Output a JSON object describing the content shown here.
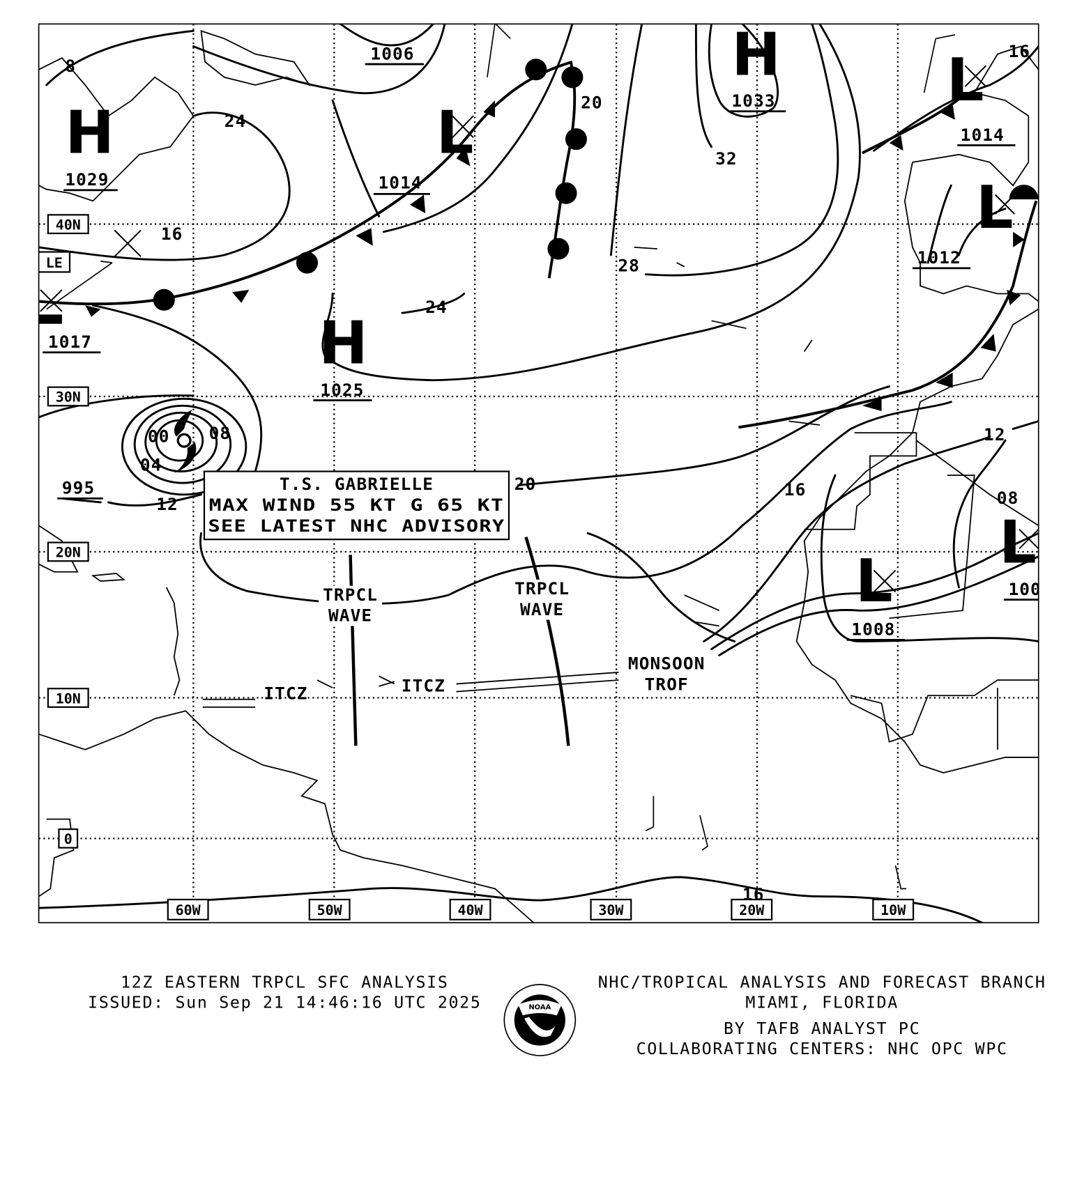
{
  "map": {
    "latitude_labels": [
      "40N",
      "30N",
      "20N",
      "10N",
      "0"
    ],
    "longitude_labels": [
      "60W",
      "50W",
      "40W",
      "30W",
      "20W",
      "10W"
    ],
    "edge_label": "LE",
    "pressure_centers": [
      {
        "type": "H",
        "value": "1029"
      },
      {
        "type": "L",
        "value": "1014"
      },
      {
        "type": "H",
        "value": "1033"
      },
      {
        "type": "L",
        "value": "1014"
      },
      {
        "type": "L",
        "value": "1012"
      },
      {
        "type": "H",
        "value": "1025"
      },
      {
        "type": "L",
        "value": "1008"
      },
      {
        "type": "L",
        "value": "100"
      }
    ],
    "other_pressure_values": [
      "1006",
      "1017",
      "995"
    ],
    "isobar_labels": [
      "8",
      "24",
      "16",
      "20",
      "32",
      "28",
      "24",
      "00",
      "08",
      "04",
      "12",
      "20",
      "16",
      "12",
      "08",
      "16",
      "16"
    ],
    "storm_box": {
      "line1": "T.S. GABRIELLE",
      "line2": "MAX WIND 55 KT G 65 KT",
      "line3": "SEE LATEST NHC ADVISORY"
    },
    "features": {
      "wave1_line1": "TRPCL",
      "wave1_line2": "WAVE",
      "wave2_line1": "TRPCL",
      "wave2_line2": "WAVE",
      "itcz1": "ITCZ",
      "itcz2": "ITCZ",
      "monsoon_line1": "MONSOON",
      "monsoon_line2": "TROF"
    }
  },
  "footer": {
    "left_line1": "12Z EASTERN TRPCL SFC ANALYSIS",
    "left_line2": "ISSUED: Sun Sep 21 14:46:16 UTC 2025",
    "logo_text": "NOAA",
    "right_line1": "NHC/TROPICAL ANALYSIS AND FORECAST BRANCH",
    "right_line2": "MIAMI,  FLORIDA",
    "right_line3": "BY TAFB ANALYST  PC",
    "right_line4": "COLLABORATING CENTERS: NHC OPC WPC"
  }
}
